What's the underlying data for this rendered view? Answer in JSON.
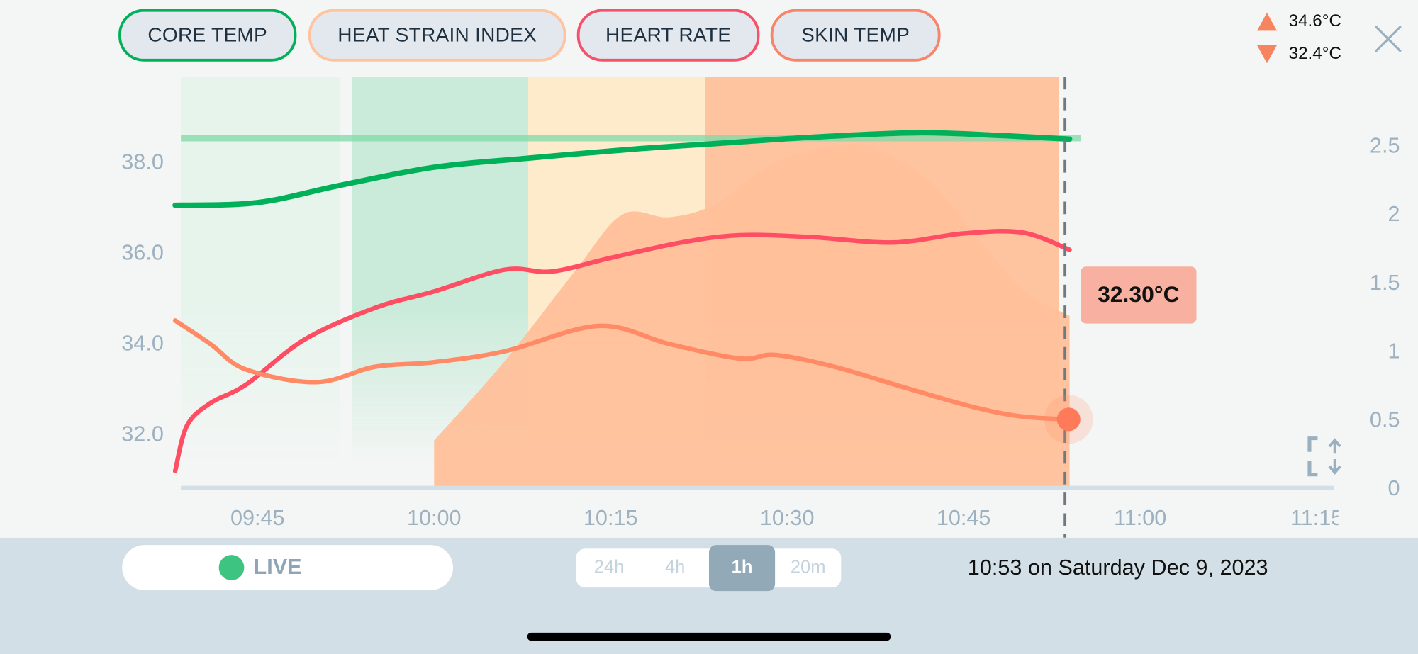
{
  "legend": {
    "buttons": [
      {
        "label": "CORE TEMP",
        "color": "#00B15A"
      },
      {
        "label": "HEAT STRAIN INDEX",
        "color": "#FFC39E"
      },
      {
        "label": "HEART RATE",
        "color": "#F5516A"
      },
      {
        "label": "SKIN TEMP",
        "color": "#F8846A"
      }
    ]
  },
  "range": {
    "max": "34.6°C",
    "min": "32.4°C",
    "max_icon": "triangle-up-icon",
    "min_icon": "triangle-down-icon"
  },
  "close_icon": "close-icon",
  "expand_icon": "expand-vertical-icon",
  "tooltip": {
    "value": "32.30°C"
  },
  "footer": {
    "live_label": "LIVE",
    "live_color": "#3CC480",
    "ranges": [
      "24h",
      "4h",
      "1h",
      "20m"
    ],
    "selected_range": "1h",
    "datetime": "10:53 on Saturday Dec 9, 2023"
  },
  "chart_data": {
    "type": "line",
    "x_ticks": [
      "09:45",
      "10:00",
      "10:15",
      "10:30",
      "10:45",
      "11:00",
      "11:15"
    ],
    "y_left_ticks": [
      "38.0",
      "36.0",
      "34.0",
      "32.0"
    ],
    "y_right_ticks": [
      "2.5",
      "2",
      "1.5",
      "1",
      "0.5",
      "0"
    ],
    "y_left_range": [
      30.8,
      39.9
    ],
    "y_right_range": [
      0,
      3
    ],
    "cursor_time": "10:53",
    "core_temp_threshold": 38.5,
    "series": [
      {
        "key": "core",
        "color": "#00B15A",
        "axis": "left",
        "points": [
          [
            "09:38",
            37.02
          ],
          [
            "09:45",
            37.08
          ],
          [
            "09:52",
            37.46
          ],
          [
            "10:00",
            37.86
          ],
          [
            "10:08",
            38.06
          ],
          [
            "10:17",
            38.26
          ],
          [
            "10:25",
            38.4
          ],
          [
            "10:32",
            38.52
          ],
          [
            "10:41",
            38.62
          ],
          [
            "10:48",
            38.56
          ],
          [
            "10:54",
            38.48
          ]
        ]
      },
      {
        "key": "heart",
        "color": "#FF4D63",
        "axis": "left",
        "points": [
          [
            "09:38",
            31.16
          ],
          [
            "09:39",
            32.16
          ],
          [
            "09:41",
            32.66
          ],
          [
            "09:44",
            33.06
          ],
          [
            "09:49",
            34.06
          ],
          [
            "09:55",
            34.76
          ],
          [
            "10:00",
            35.12
          ],
          [
            "10:06",
            35.6
          ],
          [
            "10:10",
            35.56
          ],
          [
            "10:15",
            35.86
          ],
          [
            "10:21",
            36.2
          ],
          [
            "10:26",
            36.36
          ],
          [
            "10:32",
            36.32
          ],
          [
            "10:39",
            36.2
          ],
          [
            "10:45",
            36.4
          ],
          [
            "10:50",
            36.42
          ],
          [
            "10:54",
            36.04
          ]
        ]
      },
      {
        "key": "skin",
        "color": "#FF8A65",
        "axis": "left",
        "points": [
          [
            "09:38",
            34.48
          ],
          [
            "09:41",
            33.96
          ],
          [
            "09:44",
            33.4
          ],
          [
            "09:50",
            33.12
          ],
          [
            "09:55",
            33.46
          ],
          [
            "10:00",
            33.56
          ],
          [
            "10:06",
            33.8
          ],
          [
            "10:14",
            34.36
          ],
          [
            "10:20",
            33.96
          ],
          [
            "10:26",
            33.64
          ],
          [
            "10:29",
            33.72
          ],
          [
            "10:34",
            33.46
          ],
          [
            "10:40",
            33.0
          ],
          [
            "10:46",
            32.56
          ],
          [
            "10:50",
            32.36
          ],
          [
            "10:54",
            32.3
          ]
        ]
      },
      {
        "key": "hsi",
        "color": "#FFC09A",
        "axis": "right",
        "style": "area",
        "points": [
          [
            "10:00",
            0.34
          ],
          [
            "10:06",
            0.92
          ],
          [
            "10:12",
            1.58
          ],
          [
            "10:16",
            1.99
          ],
          [
            "10:20",
            1.97
          ],
          [
            "10:24",
            2.07
          ],
          [
            "10:29",
            2.37
          ],
          [
            "10:35",
            2.5
          ],
          [
            "10:38",
            2.45
          ],
          [
            "10:42",
            2.24
          ],
          [
            "10:46",
            1.84
          ],
          [
            "10:50",
            1.44
          ],
          [
            "10:54",
            1.25
          ]
        ]
      }
    ],
    "hsi_bands": [
      {
        "start": "09:38",
        "end": "09:52",
        "level": "low-faint"
      },
      {
        "start": "09:53",
        "end": "09:57",
        "level": "low"
      },
      {
        "start": "09:58",
        "end": "10:02",
        "level": "low"
      },
      {
        "start": "10:03",
        "end": "10:07",
        "level": "low"
      },
      {
        "start": "10:08",
        "end": "10:12",
        "level": "moderate"
      },
      {
        "start": "10:13",
        "end": "10:17",
        "level": "moderate"
      },
      {
        "start": "10:18",
        "end": "10:22",
        "level": "moderate"
      },
      {
        "start": "10:23",
        "end": "10:27",
        "level": "high"
      },
      {
        "start": "10:28",
        "end": "10:32",
        "level": "high"
      },
      {
        "start": "10:33",
        "end": "10:37",
        "level": "high"
      },
      {
        "start": "10:38",
        "end": "10:42",
        "level": "high"
      },
      {
        "start": "10:43",
        "end": "10:47",
        "level": "high"
      },
      {
        "start": "10:48",
        "end": "10:52",
        "level": "high"
      }
    ],
    "band_colors": {
      "low-faint": "#E6F4EC",
      "low": "#CBEBDA",
      "moderate": "#FDEBCB",
      "high": "#FEC4A0"
    }
  }
}
